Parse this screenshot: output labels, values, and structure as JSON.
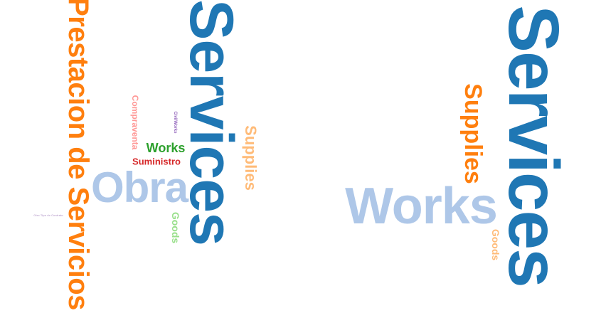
{
  "colors": {
    "dark_blue": "#1f77b4",
    "light_blue": "#aec7e8",
    "orange": "#ff7f0e",
    "light_orange": "#ffbb78",
    "green": "#2ca02c",
    "light_green": "#98df8a",
    "red": "#d62728",
    "pink": "#ff9896",
    "purple": "#9467bd",
    "light_purple": "#c5b0d5"
  },
  "left_cloud": {
    "words": [
      {
        "text": "Services",
        "color": "#1f77b4",
        "orientation": "vertical"
      },
      {
        "text": "Prestacion de Servicios",
        "color": "#ff7f0e",
        "orientation": "vertical"
      },
      {
        "text": "Obra",
        "color": "#aec7e8",
        "orientation": "horizontal"
      },
      {
        "text": "Supplies",
        "color": "#ffbb78",
        "orientation": "vertical"
      },
      {
        "text": "Works",
        "color": "#2ca02c",
        "orientation": "horizontal"
      },
      {
        "text": "Suministro",
        "color": "#d62728",
        "orientation": "horizontal"
      },
      {
        "text": "Compraventa",
        "color": "#ff9896",
        "orientation": "vertical"
      },
      {
        "text": "Goods",
        "color": "#98df8a",
        "orientation": "vertical"
      },
      {
        "text": "CivilWorks",
        "color": "#9467bd",
        "orientation": "vertical"
      },
      {
        "text": "Otro Tipo de Contrato",
        "color": "#c5b0d5",
        "orientation": "horizontal"
      }
    ]
  },
  "right_cloud": {
    "words": [
      {
        "text": "Services",
        "color": "#1f77b4",
        "orientation": "vertical"
      },
      {
        "text": "Works",
        "color": "#aec7e8",
        "orientation": "horizontal"
      },
      {
        "text": "Supplies",
        "color": "#ff7f0e",
        "orientation": "vertical"
      },
      {
        "text": "Goods",
        "color": "#ffbb78",
        "orientation": "vertical"
      }
    ]
  }
}
